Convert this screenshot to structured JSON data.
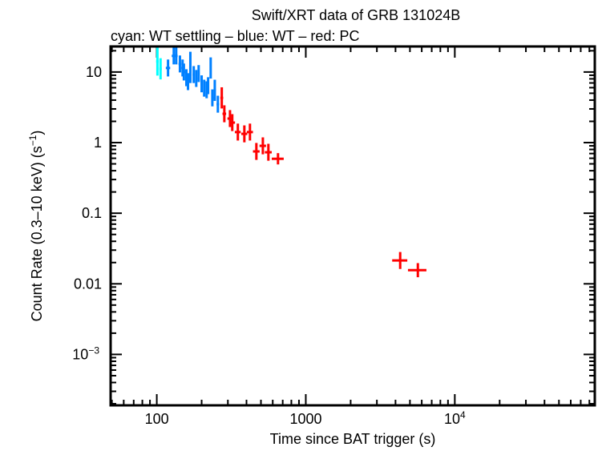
{
  "chart_data": {
    "type": "scatter",
    "title": "Swift/XRT data of GRB 131024B",
    "subtitle": "cyan: WT settling – blue: WT – red: PC",
    "xlabel": "Time since BAT trigger (s)",
    "ylabel": "Count Rate (0.3–10 keV) (s",
    "ylabel_sup": "−1",
    "ylabel_end": ")",
    "xscale": "log",
    "yscale": "log",
    "xlim": [
      49,
      87000
    ],
    "ylim": [
      0.00019,
      23
    ],
    "grid": false,
    "x_ticks": [
      {
        "value": 100,
        "label": "100"
      },
      {
        "value": 1000,
        "label": "1000"
      },
      {
        "value": 10000,
        "label": "10",
        "sup": "4"
      }
    ],
    "y_ticks": [
      {
        "value": 10,
        "label": "10"
      },
      {
        "value": 1,
        "label": "1"
      },
      {
        "value": 0.1,
        "label": "0.1"
      },
      {
        "value": 0.01,
        "label": "0.01"
      },
      {
        "value": 0.001,
        "label": "10",
        "sup": "−3"
      }
    ],
    "series": [
      {
        "color": "#00ffff",
        "points": [
          {
            "x": 101,
            "y": 14.1,
            "xe": 2,
            "ye": 0.2
          },
          {
            "x": 106,
            "y": 11.1,
            "xe": 2,
            "ye": 0.15
          }
        ]
      },
      {
        "color": "#0080ff",
        "points": [
          {
            "x": 119,
            "y": 11.4,
            "xe": 4,
            "ye": 0.12
          },
          {
            "x": 130,
            "y": 16.9,
            "xe": 4,
            "ye": 0.12
          },
          {
            "x": 135,
            "y": 16.9,
            "xe": 3,
            "ye": 0.12
          },
          {
            "x": 143,
            "y": 13.0,
            "xe": 3,
            "ye": 0.12
          },
          {
            "x": 149,
            "y": 11.4,
            "xe": 3,
            "ye": 0.12
          },
          {
            "x": 152,
            "y": 10.0,
            "xe": 3,
            "ye": 0.12
          },
          {
            "x": 158,
            "y": 8.3,
            "xe": 3,
            "ye": 0.12
          },
          {
            "x": 162,
            "y": 7.3,
            "xe": 2,
            "ye": 0.12
          },
          {
            "x": 168,
            "y": 13.7,
            "xe": 2,
            "ye": 0.15
          },
          {
            "x": 168,
            "y": 9.2,
            "xe": 3,
            "ye": 0.12
          },
          {
            "x": 177,
            "y": 9.2,
            "xe": 3,
            "ye": 0.12
          },
          {
            "x": 184,
            "y": 8.1,
            "xe": 3,
            "ye": 0.12
          },
          {
            "x": 191,
            "y": 9.5,
            "xe": 3,
            "ye": 0.12
          },
          {
            "x": 200,
            "y": 6.8,
            "xe": 3,
            "ye": 0.12
          },
          {
            "x": 208,
            "y": 5.9,
            "xe": 3,
            "ye": 0.12
          },
          {
            "x": 216,
            "y": 5.6,
            "xe": 3,
            "ye": 0.12
          },
          {
            "x": 221,
            "y": 6.4,
            "xe": 3,
            "ye": 0.12
          },
          {
            "x": 230,
            "y": 11.4,
            "xe": 2,
            "ye": 0.15
          },
          {
            "x": 236,
            "y": 4.3,
            "xe": 4,
            "ye": 0.12
          },
          {
            "x": 245,
            "y": 5.5,
            "xe": 4,
            "ye": 0.15
          },
          {
            "x": 257,
            "y": 3.5,
            "xe": 5,
            "ye": 0.12
          }
        ]
      },
      {
        "color": "#ff0000",
        "points": [
          {
            "x": 273,
            "y": 4.3,
            "xe": 6,
            "ye": 0.15
          },
          {
            "x": 284,
            "y": 2.56,
            "xe": 8,
            "ye": 0.12
          },
          {
            "x": 310,
            "y": 2.19,
            "xe": 12,
            "ye": 0.12
          },
          {
            "x": 321,
            "y": 1.92,
            "xe": 14,
            "ye": 0.12
          },
          {
            "x": 350,
            "y": 1.41,
            "xe": 16,
            "ye": 0.12
          },
          {
            "x": 387,
            "y": 1.33,
            "xe": 18,
            "ye": 0.12
          },
          {
            "x": 422,
            "y": 1.41,
            "xe": 20,
            "ye": 0.12
          },
          {
            "x": 466,
            "y": 0.75,
            "xe": 24,
            "ye": 0.12
          },
          {
            "x": 515,
            "y": 0.9,
            "xe": 26,
            "ye": 0.12
          },
          {
            "x": 561,
            "y": 0.73,
            "xe": 30,
            "ye": 0.12
          },
          {
            "x": 651,
            "y": 0.59,
            "xe": 60,
            "ye": 0.08
          },
          {
            "x": 4300,
            "y": 0.0214,
            "xe": 500,
            "ye": 0.12
          },
          {
            "x": 5650,
            "y": 0.0156,
            "xe": 800,
            "ye": 0.1
          }
        ]
      }
    ]
  }
}
